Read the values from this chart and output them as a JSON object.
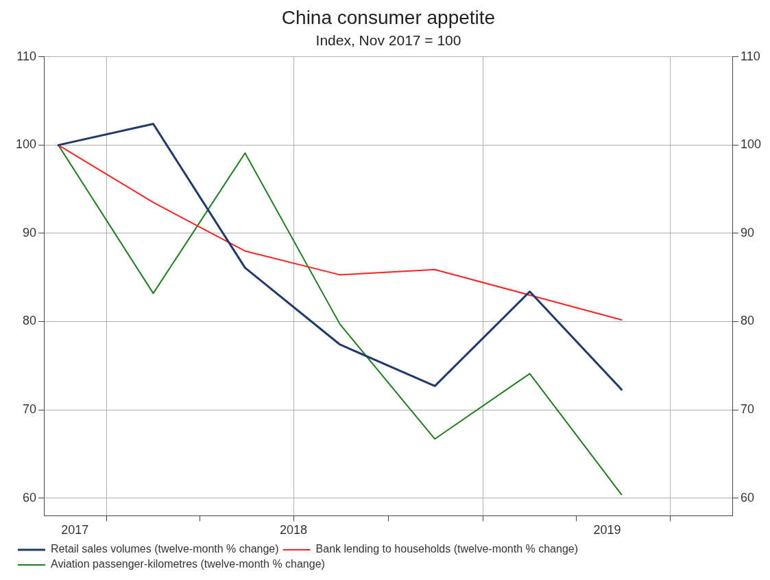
{
  "chart_data": {
    "type": "line",
    "title": "China consumer appetite",
    "subtitle": "Index, Nov 2017 = 100",
    "x": [
      "2017-11-15",
      "2018-02-15",
      "2018-05-15",
      "2018-08-15",
      "2018-11-15",
      "2019-02-15",
      "2019-05-15"
    ],
    "xlim": [
      "2017-11-01",
      "2019-08-31"
    ],
    "xticks": [
      {
        "value": "2017-12-01",
        "label": "2017"
      },
      {
        "value": "2018-01-01",
        "label": null
      },
      {
        "value": "2018-04-01",
        "label": null
      },
      {
        "value": "2018-07-01",
        "label": "2018"
      },
      {
        "value": "2018-10-01",
        "label": null
      },
      {
        "value": "2019-01-01",
        "label": null
      },
      {
        "value": "2019-04-01",
        "label": null
      },
      {
        "value": "2019-05-01",
        "label": "2019"
      },
      {
        "value": "2019-07-01",
        "label": null
      }
    ],
    "ylim": [
      58,
      110
    ],
    "yticks": [
      60,
      70,
      80,
      90,
      100,
      110
    ],
    "y2lim": [
      58,
      110
    ],
    "y2ticks": [
      60,
      70,
      80,
      90,
      100,
      110
    ],
    "series": [
      {
        "name": "Retail sales volumes (twelve-month % change)",
        "color": "#1f3a68",
        "values": [
          100,
          102.4,
          86.1,
          77.4,
          72.7,
          83.4,
          72.3
        ]
      },
      {
        "name": "Bank lending to households (twelve-month % change)",
        "color": "#ff2020",
        "values": [
          100,
          93.5,
          88,
          85.3,
          85.9,
          83,
          80.2
        ]
      },
      {
        "name": "Aviation passenger-kilometres (twelve-month % change)",
        "color": "#1e7b1e",
        "values": [
          100,
          83.2,
          99.1,
          79.7,
          66.7,
          74.1,
          60.4
        ]
      }
    ],
    "grid": true,
    "legend": "bottom",
    "marker": "none",
    "line_style": "solid"
  }
}
